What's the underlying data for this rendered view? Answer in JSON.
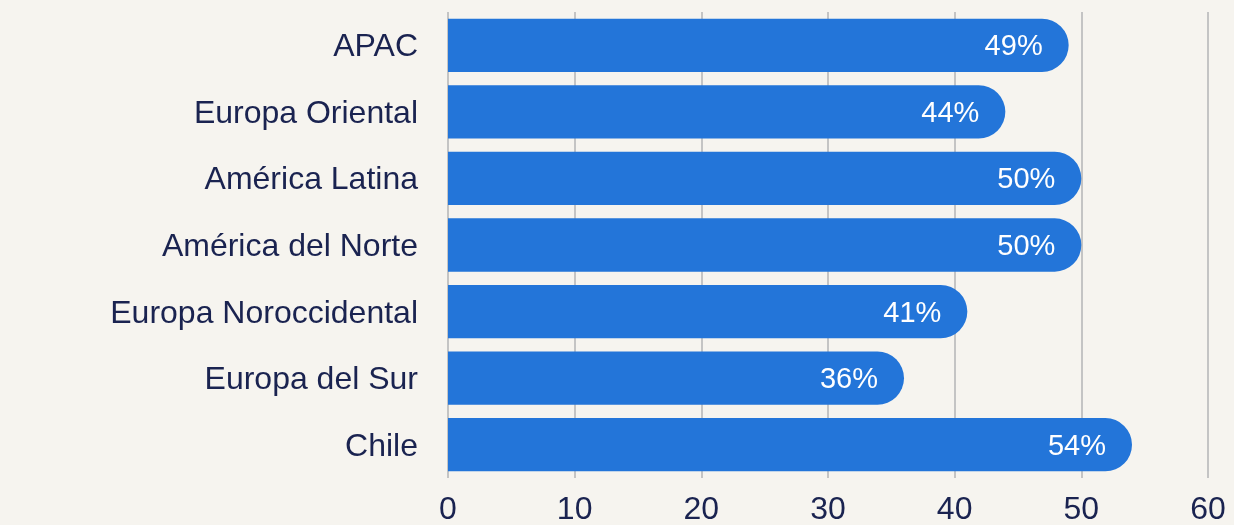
{
  "chart_data": {
    "type": "bar",
    "orientation": "horizontal",
    "categories": [
      "APAC",
      "Europa Oriental",
      "América Latina",
      "América del Norte",
      "Europa Noroccidental",
      "Europa del Sur",
      "Chile"
    ],
    "values": [
      49,
      44,
      50,
      50,
      41,
      36,
      54
    ],
    "value_labels": [
      "49%",
      "44%",
      "50%",
      "50%",
      "41%",
      "36%",
      "54%"
    ],
    "color": "#2375d9",
    "xlim": [
      0,
      60
    ],
    "xticks": [
      0,
      10,
      20,
      30,
      40,
      50,
      60
    ],
    "grid": "x"
  }
}
